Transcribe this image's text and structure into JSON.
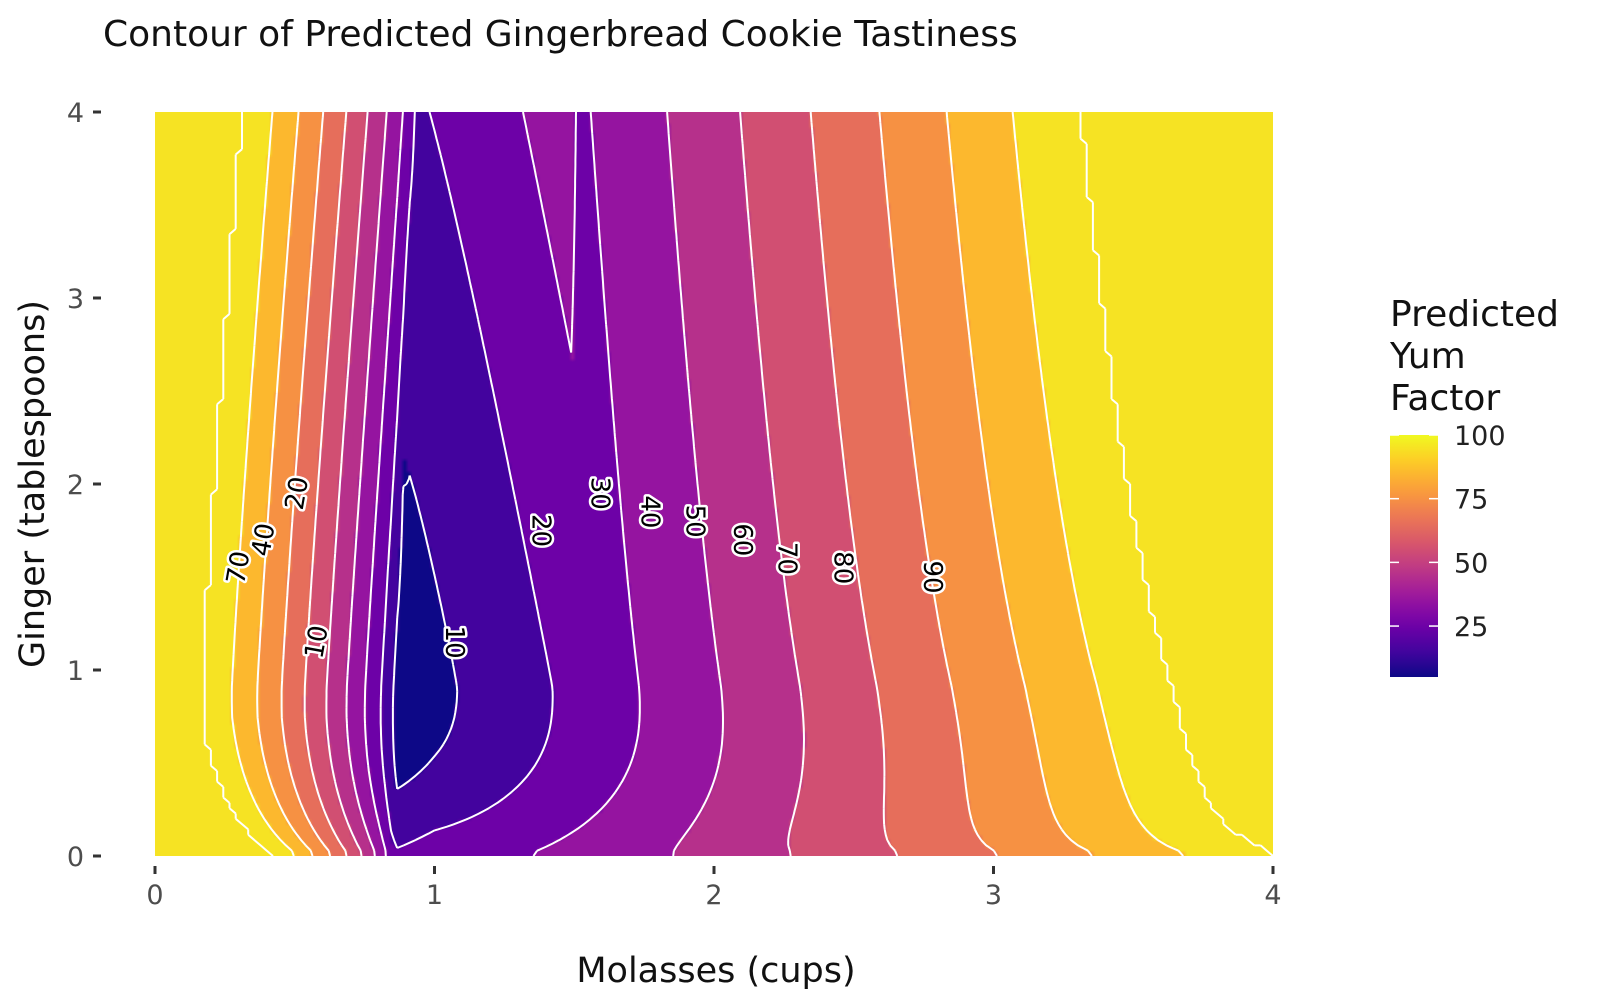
{
  "chart_data": {
    "type": "contour",
    "title": "Contour of Predicted Gingerbread Cookie Tastiness",
    "xlabel": "Molasses (cups)",
    "ylabel": "Ginger (tablespoons)",
    "xlim": [
      0,
      4
    ],
    "ylim": [
      0,
      4
    ],
    "x_ticks": [
      "0",
      "1",
      "2",
      "3",
      "4"
    ],
    "y_ticks": [
      "0",
      "1",
      "2",
      "3",
      "4"
    ],
    "grid": false,
    "colormap": "plasma",
    "colormap_stops": [
      "#0d0887",
      "#46039f",
      "#7201a8",
      "#9c179e",
      "#bd3786",
      "#d8576b",
      "#ed7953",
      "#fb9f3a",
      "#fdca26",
      "#f0f921"
    ],
    "contour_line_color": "#ffffff",
    "contour_levels": [
      10,
      20,
      30,
      40,
      50,
      60,
      70,
      80,
      90,
      100
    ],
    "contour_labels": [
      {
        "text": "10",
        "x": 0.58,
        "y": 1.15
      },
      {
        "text": "10",
        "x": 1.07,
        "y": 1.15
      },
      {
        "text": "20",
        "x": 0.51,
        "y": 1.95
      },
      {
        "text": "20",
        "x": 1.38,
        "y": 1.75
      },
      {
        "text": "30",
        "x": 1.59,
        "y": 1.95
      },
      {
        "text": "40",
        "x": 1.77,
        "y": 1.85
      },
      {
        "text": "40",
        "x": 0.39,
        "y": 1.7
      },
      {
        "text": "50",
        "x": 1.93,
        "y": 1.8
      },
      {
        "text": "60",
        "x": 2.1,
        "y": 1.7
      },
      {
        "text": "70",
        "x": 2.26,
        "y": 1.6
      },
      {
        "text": "70",
        "x": 0.3,
        "y": 1.55
      },
      {
        "text": "80",
        "x": 2.46,
        "y": 1.55
      },
      {
        "text": "90",
        "x": 2.78,
        "y": 1.5
      }
    ],
    "legend": {
      "title_lines": [
        "Predicted",
        "Yum",
        "Factor"
      ],
      "labels": [
        "100",
        "75",
        "50",
        "25"
      ],
      "values": [
        100,
        75,
        50,
        25
      ],
      "range": [
        5,
        100
      ],
      "position": "right"
    }
  }
}
